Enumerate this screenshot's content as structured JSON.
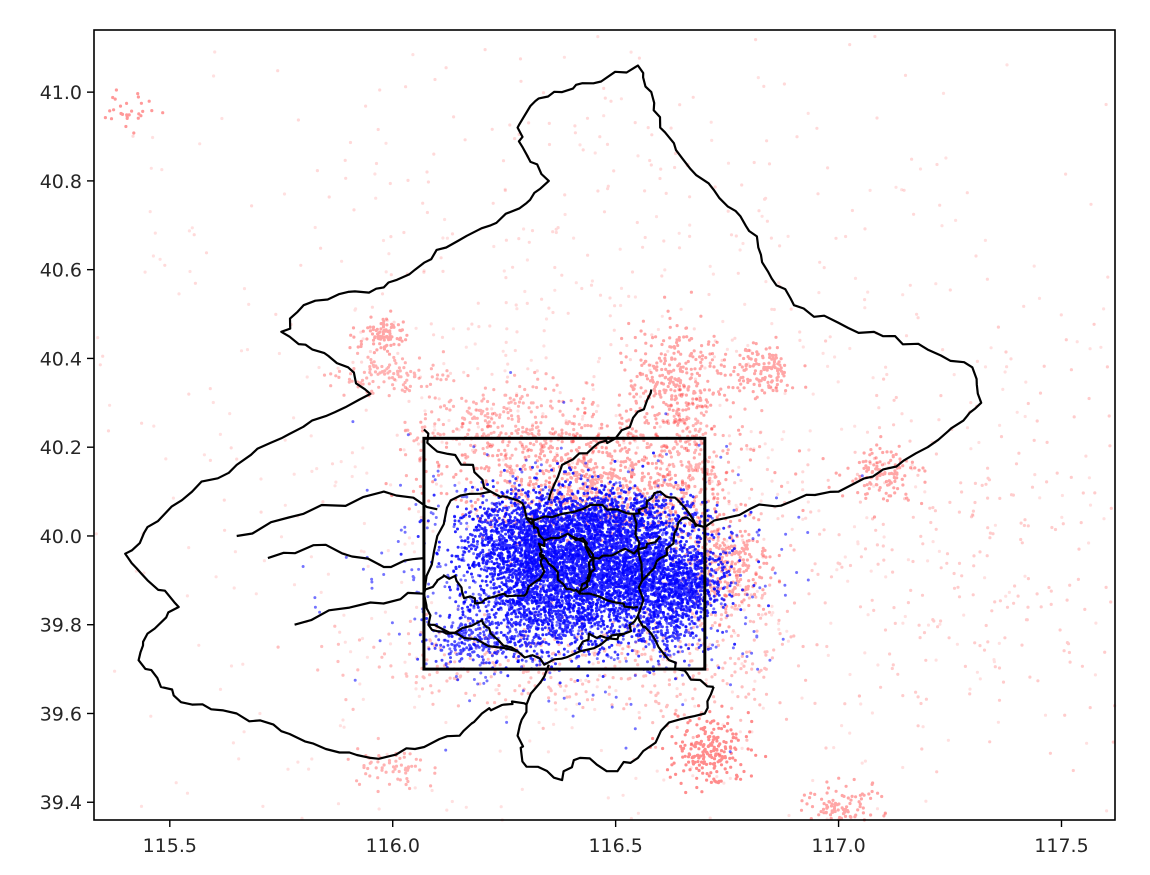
{
  "chart_data": {
    "type": "scatter",
    "title": "",
    "xlabel": "",
    "ylabel": "",
    "xlim": [
      115.33,
      117.62
    ],
    "ylim": [
      39.36,
      41.14
    ],
    "x_ticks": [
      "115.5",
      "116.0",
      "116.5",
      "117.0",
      "117.5"
    ],
    "y_ticks": [
      "39.4",
      "39.6",
      "39.8",
      "40.0",
      "40.2",
      "40.4",
      "40.6",
      "40.8",
      "41.0"
    ],
    "grid": false,
    "legend": "none",
    "series": [
      {
        "color": "#ff0000",
        "marker": "small semi-transparent dots",
        "clusters": [
          {
            "x": 116.45,
            "y": 40.12,
            "sx": 0.16,
            "sy": 0.07,
            "n": 900,
            "alpha": 0.35
          },
          {
            "x": 116.25,
            "y": 40.25,
            "sx": 0.1,
            "sy": 0.05,
            "n": 260,
            "alpha": 0.3
          },
          {
            "x": 116.63,
            "y": 40.35,
            "sx": 0.06,
            "sy": 0.06,
            "n": 300,
            "alpha": 0.35
          },
          {
            "x": 116.67,
            "y": 40.17,
            "sx": 0.05,
            "sy": 0.08,
            "n": 200,
            "alpha": 0.3
          },
          {
            "x": 116.75,
            "y": 39.93,
            "sx": 0.05,
            "sy": 0.06,
            "n": 260,
            "alpha": 0.35
          },
          {
            "x": 116.82,
            "y": 40.37,
            "sx": 0.04,
            "sy": 0.03,
            "n": 140,
            "alpha": 0.35
          },
          {
            "x": 117.1,
            "y": 40.14,
            "sx": 0.04,
            "sy": 0.03,
            "n": 120,
            "alpha": 0.35
          },
          {
            "x": 115.98,
            "y": 40.45,
            "sx": 0.03,
            "sy": 0.02,
            "n": 90,
            "alpha": 0.35
          },
          {
            "x": 116.0,
            "y": 40.36,
            "sx": 0.06,
            "sy": 0.02,
            "n": 110,
            "alpha": 0.3
          },
          {
            "x": 116.71,
            "y": 39.52,
            "sx": 0.04,
            "sy": 0.04,
            "n": 220,
            "alpha": 0.45
          },
          {
            "x": 117.0,
            "y": 39.39,
            "sx": 0.04,
            "sy": 0.03,
            "n": 110,
            "alpha": 0.35
          },
          {
            "x": 116.3,
            "y": 39.72,
            "sx": 0.2,
            "sy": 0.06,
            "n": 260,
            "alpha": 0.25
          },
          {
            "x": 116.7,
            "y": 39.75,
            "sx": 0.1,
            "sy": 0.1,
            "n": 200,
            "alpha": 0.25
          },
          {
            "x": 116.0,
            "y": 39.48,
            "sx": 0.04,
            "sy": 0.02,
            "n": 60,
            "alpha": 0.3
          },
          {
            "x": 115.42,
            "y": 40.96,
            "sx": 0.03,
            "sy": 0.02,
            "n": 30,
            "alpha": 0.4
          },
          {
            "x": 117.3,
            "y": 39.95,
            "sx": 0.25,
            "sy": 0.2,
            "n": 250,
            "alpha": 0.2
          },
          {
            "x": 116.5,
            "y": 40.6,
            "sx": 0.5,
            "sy": 0.3,
            "n": 350,
            "alpha": 0.15
          },
          {
            "x": 116.5,
            "y": 40.0,
            "sx": 0.7,
            "sy": 0.5,
            "n": 700,
            "alpha": 0.12
          }
        ]
      },
      {
        "color": "#0000ff",
        "marker": "dense small dots",
        "clusters": [
          {
            "x": 116.42,
            "y": 39.94,
            "sx": 0.11,
            "sy": 0.07,
            "n": 2600,
            "alpha": 0.85
          },
          {
            "x": 116.3,
            "y": 39.98,
            "sx": 0.08,
            "sy": 0.06,
            "n": 900,
            "alpha": 0.8
          },
          {
            "x": 116.58,
            "y": 39.92,
            "sx": 0.07,
            "sy": 0.05,
            "n": 800,
            "alpha": 0.8
          },
          {
            "x": 116.66,
            "y": 39.88,
            "sx": 0.04,
            "sy": 0.04,
            "n": 350,
            "alpha": 0.8
          },
          {
            "x": 116.35,
            "y": 39.81,
            "sx": 0.09,
            "sy": 0.05,
            "n": 500,
            "alpha": 0.8
          },
          {
            "x": 116.18,
            "y": 39.76,
            "sx": 0.05,
            "sy": 0.03,
            "n": 200,
            "alpha": 0.7
          },
          {
            "x": 116.52,
            "y": 40.05,
            "sx": 0.1,
            "sy": 0.03,
            "n": 450,
            "alpha": 0.8
          },
          {
            "x": 116.6,
            "y": 39.79,
            "sx": 0.05,
            "sy": 0.04,
            "n": 220,
            "alpha": 0.75
          },
          {
            "x": 116.4,
            "y": 39.9,
            "sx": 0.2,
            "sy": 0.12,
            "n": 900,
            "alpha": 0.55
          }
        ]
      }
    ],
    "bounding_box": {
      "x_range": [
        116.07,
        116.7
      ],
      "y_range": [
        39.7,
        40.22
      ]
    },
    "region_outlines": [
      [
        [
          116.55,
          39.97
        ],
        [
          116.54,
          40.05
        ],
        [
          116.47,
          40.07
        ],
        [
          116.38,
          40.05
        ],
        [
          116.3,
          40.04
        ],
        [
          116.28,
          40.08
        ],
        [
          116.22,
          40.1
        ],
        [
          116.13,
          40.08
        ],
        [
          116.1,
          40.0
        ],
        [
          116.07,
          39.87
        ],
        [
          116.08,
          39.8
        ],
        [
          116.16,
          39.77
        ],
        [
          116.28,
          39.74
        ],
        [
          116.34,
          39.71
        ],
        [
          116.42,
          39.74
        ],
        [
          116.52,
          39.78
        ],
        [
          116.55,
          39.82
        ],
        [
          116.56,
          39.9
        ],
        [
          116.55,
          39.97
        ]
      ],
      [
        [
          116.34,
          39.99
        ],
        [
          116.33,
          39.96
        ],
        [
          116.36,
          39.93
        ],
        [
          116.39,
          39.88
        ],
        [
          116.42,
          39.87
        ],
        [
          116.44,
          39.9
        ],
        [
          116.45,
          39.95
        ],
        [
          116.43,
          39.99
        ],
        [
          116.4,
          40.0
        ],
        [
          116.34,
          39.99
        ]
      ],
      [
        [
          116.4,
          40.0
        ],
        [
          116.43,
          39.99
        ],
        [
          116.45,
          39.95
        ],
        [
          116.44,
          39.9
        ],
        [
          116.42,
          39.87
        ]
      ],
      [
        [
          116.07,
          39.87
        ],
        [
          116.1,
          39.9
        ],
        [
          116.14,
          39.91
        ],
        [
          116.16,
          39.86
        ],
        [
          116.2,
          39.85
        ],
        [
          116.25,
          39.87
        ],
        [
          116.3,
          39.87
        ],
        [
          116.34,
          39.92
        ],
        [
          116.33,
          39.96
        ]
      ],
      [
        [
          116.42,
          39.87
        ],
        [
          116.5,
          39.85
        ],
        [
          116.55,
          39.84
        ]
      ],
      [
        [
          116.3,
          40.04
        ],
        [
          116.32,
          40.02
        ],
        [
          116.34,
          39.99
        ]
      ],
      [
        [
          116.08,
          39.8
        ],
        [
          116.12,
          39.78
        ],
        [
          116.2,
          39.81
        ],
        [
          116.22,
          39.78
        ],
        [
          116.28,
          39.74
        ]
      ],
      [
        [
          116.42,
          39.74
        ],
        [
          116.44,
          39.78
        ],
        [
          116.48,
          39.77
        ],
        [
          116.52,
          39.78
        ]
      ],
      [
        [
          116.56,
          39.9
        ],
        [
          116.6,
          39.95
        ],
        [
          116.63,
          39.99
        ],
        [
          116.65,
          40.04
        ],
        [
          116.7,
          40.02
        ]
      ],
      [
        [
          116.54,
          40.05
        ],
        [
          116.57,
          40.08
        ],
        [
          116.6,
          40.1
        ],
        [
          116.64,
          40.08
        ],
        [
          116.68,
          40.02
        ]
      ],
      [
        [
          116.55,
          39.82
        ],
        [
          116.58,
          39.78
        ],
        [
          116.62,
          39.72
        ],
        [
          116.66,
          39.69
        ],
        [
          116.72,
          39.66
        ]
      ],
      [
        [
          115.78,
          39.8
        ],
        [
          115.95,
          39.85
        ],
        [
          116.07,
          39.87
        ]
      ],
      [
        [
          115.65,
          40.0
        ],
        [
          115.8,
          40.05
        ],
        [
          115.98,
          40.1
        ],
        [
          116.1,
          40.06
        ]
      ],
      [
        [
          115.72,
          39.95
        ],
        [
          115.85,
          39.98
        ],
        [
          115.98,
          39.93
        ],
        [
          116.07,
          39.95
        ]
      ],
      [
        [
          116.22,
          40.1
        ],
        [
          116.18,
          40.16
        ],
        [
          116.1,
          40.19
        ],
        [
          116.07,
          40.24
        ]
      ],
      [
        [
          116.35,
          40.08
        ],
        [
          116.38,
          40.16
        ],
        [
          116.45,
          40.2
        ],
        [
          116.5,
          40.22
        ],
        [
          116.55,
          40.28
        ],
        [
          116.58,
          40.33
        ]
      ],
      [
        [
          116.35,
          39.71
        ],
        [
          116.3,
          39.62
        ],
        [
          116.28,
          39.55
        ],
        [
          116.3,
          39.48
        ],
        [
          116.38,
          39.45
        ],
        [
          116.42,
          39.5
        ],
        [
          116.48,
          39.47
        ],
        [
          116.55,
          39.5
        ],
        [
          116.62,
          39.58
        ],
        [
          116.7,
          39.6
        ],
        [
          116.72,
          39.66
        ]
      ],
      [
        [
          116.7,
          40.02
        ],
        [
          116.8,
          40.06
        ],
        [
          116.9,
          40.08
        ],
        [
          117.0,
          40.1
        ],
        [
          117.1,
          40.15
        ],
        [
          117.2,
          40.2
        ],
        [
          117.28,
          40.26
        ],
        [
          117.32,
          40.3
        ],
        [
          117.3,
          40.38
        ],
        [
          117.2,
          40.42
        ],
        [
          117.1,
          40.45
        ],
        [
          117.0,
          40.48
        ],
        [
          116.9,
          40.52
        ],
        [
          116.85,
          40.58
        ],
        [
          116.82,
          40.65
        ],
        [
          116.78,
          40.72
        ],
        [
          116.72,
          40.78
        ],
        [
          116.65,
          40.85
        ],
        [
          116.6,
          40.92
        ],
        [
          116.58,
          41.0
        ],
        [
          116.55,
          41.06
        ],
        [
          116.45,
          41.02
        ],
        [
          116.38,
          41.0
        ],
        [
          116.32,
          40.98
        ],
        [
          116.28,
          40.92
        ],
        [
          116.3,
          40.86
        ],
        [
          116.35,
          40.8
        ],
        [
          116.3,
          40.75
        ],
        [
          116.22,
          40.7
        ],
        [
          116.12,
          40.65
        ],
        [
          116.05,
          40.6
        ],
        [
          115.98,
          40.56
        ],
        [
          115.9,
          40.55
        ],
        [
          115.8,
          40.52
        ],
        [
          115.75,
          40.46
        ],
        [
          115.82,
          40.42
        ],
        [
          115.9,
          40.38
        ],
        [
          115.95,
          40.32
        ],
        [
          115.85,
          40.27
        ],
        [
          115.75,
          40.22
        ],
        [
          115.65,
          40.16
        ],
        [
          115.55,
          40.1
        ],
        [
          115.45,
          40.02
        ],
        [
          115.4,
          39.96
        ],
        [
          115.45,
          39.9
        ],
        [
          115.52,
          39.84
        ],
        [
          115.45,
          39.78
        ],
        [
          115.43,
          39.72
        ],
        [
          115.48,
          39.66
        ],
        [
          115.55,
          39.62
        ],
        [
          115.65,
          39.6
        ],
        [
          115.75,
          39.56
        ],
        [
          115.85,
          39.52
        ],
        [
          115.95,
          39.5
        ],
        [
          116.05,
          39.52
        ],
        [
          116.15,
          39.55
        ],
        [
          116.2,
          39.6
        ],
        [
          116.25,
          39.62
        ],
        [
          116.3,
          39.62
        ]
      ],
      [
        [
          116.55,
          39.97
        ],
        [
          116.6,
          40.0
        ]
      ],
      [
        [
          116.45,
          39.95
        ],
        [
          116.5,
          39.96
        ],
        [
          116.55,
          39.97
        ]
      ]
    ]
  }
}
